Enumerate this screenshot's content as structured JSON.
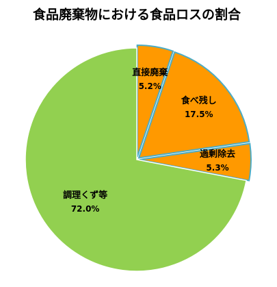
{
  "chart_data": {
    "type": "pie",
    "title": "食品廃棄物における食品ロスの割合",
    "categories": [
      "直接廃棄",
      "食べ残し",
      "過剰除去",
      "調理くず等"
    ],
    "values": [
      5.2,
      17.5,
      5.3,
      72.0
    ],
    "value_labels": [
      "5.2%",
      "17.5%",
      "5.3%",
      "72.0%"
    ],
    "colors": [
      "#ff9900",
      "#ff9900",
      "#ff9900",
      "#92d050"
    ]
  }
}
